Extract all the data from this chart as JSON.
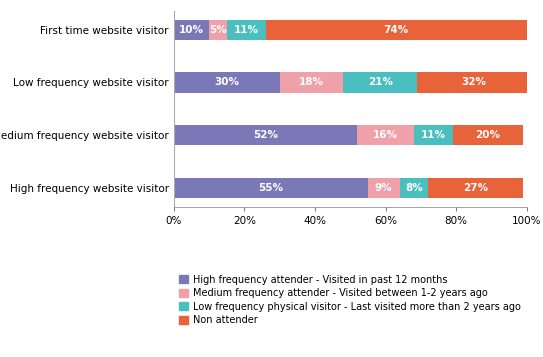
{
  "categories": [
    "First time website visitor",
    "Low frequency website visitor",
    "Medium frequency website visitor",
    "High frequency website visitor"
  ],
  "series": [
    {
      "label": "High frequency attender - Visited in past 12 months",
      "color": "#7b78b8",
      "values": [
        10,
        30,
        52,
        55
      ]
    },
    {
      "label": "Medium frequency attender - Visited between 1-2 years ago",
      "color": "#f0a0a8",
      "values": [
        5,
        18,
        16,
        9
      ]
    },
    {
      "label": "Low frequency physical visitor - Last visited more than 2 years ago",
      "color": "#4bbfbf",
      "values": [
        11,
        21,
        11,
        8
      ]
    },
    {
      "label": "Non attender",
      "color": "#e8623a",
      "values": [
        74,
        32,
        20,
        27
      ]
    }
  ],
  "xlim": [
    0,
    100
  ],
  "xticks": [
    0,
    20,
    40,
    60,
    80,
    100
  ],
  "xticklabels": [
    "0%",
    "20%",
    "40%",
    "60%",
    "80%",
    "100%"
  ],
  "bar_height": 0.38,
  "legend_fontsize": 7.0,
  "tick_fontsize": 7.5,
  "label_fontsize": 7.5,
  "background_color": "#ffffff"
}
